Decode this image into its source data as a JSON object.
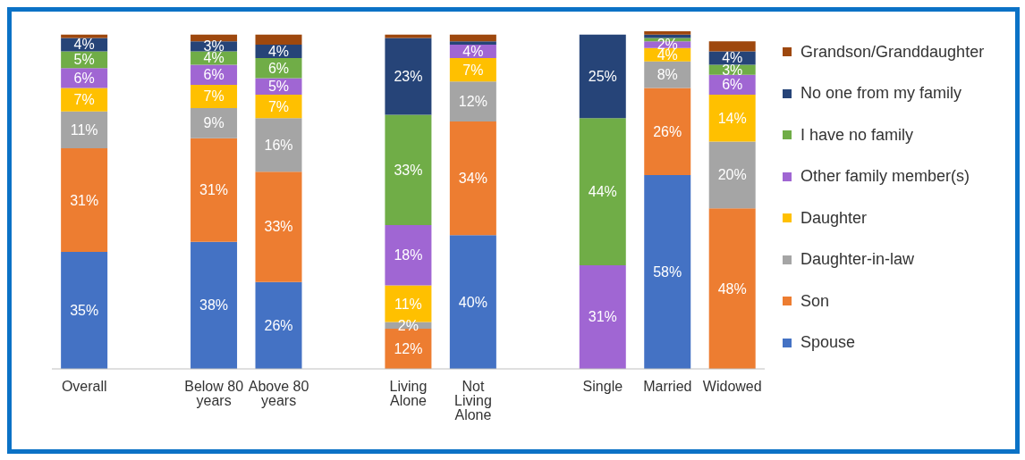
{
  "chart_data": {
    "type": "bar",
    "stacked": true,
    "legend": "right",
    "categories": [
      "Overall",
      null,
      "Below 80 years",
      "Above 80 years",
      null,
      "Living Alone",
      "Not Living Alone",
      null,
      "Single",
      "Married",
      "Widowed"
    ],
    "series": [
      {
        "name": "Spouse",
        "color": "#4472c4",
        "values": [
          35,
          null,
          38,
          26,
          null,
          0,
          40,
          null,
          0,
          58,
          0
        ],
        "value_labels": [
          "35%",
          null,
          "38%",
          "26%",
          null,
          null,
          "40%",
          null,
          null,
          "58%",
          null
        ]
      },
      {
        "name": "Son",
        "color": "#ed7d31",
        "values": [
          31,
          null,
          31,
          33,
          null,
          12,
          34,
          null,
          0,
          26,
          48
        ],
        "value_labels": [
          "31%",
          null,
          "31%",
          "33%",
          null,
          "12%",
          "34%",
          null,
          null,
          "26%",
          "48%"
        ]
      },
      {
        "name": "Daughter-in-law",
        "color": "#a5a5a5",
        "values": [
          11,
          null,
          9,
          16,
          null,
          2,
          12,
          null,
          0,
          8,
          20
        ],
        "value_labels": [
          "11%",
          null,
          "9%",
          "16%",
          null,
          "2%",
          "12%",
          null,
          null,
          "8%",
          "20%"
        ]
      },
      {
        "name": "Daughter",
        "color": "#ffc000",
        "values": [
          7,
          null,
          7,
          7,
          null,
          11,
          7,
          null,
          0,
          4,
          14
        ],
        "value_labels": [
          "7%",
          null,
          "7%",
          "7%",
          null,
          "11%",
          "7%",
          null,
          null,
          "4%",
          "14%"
        ]
      },
      {
        "name": "Other family member(s)",
        "color": "#a066d3",
        "values": [
          6,
          null,
          6,
          5,
          null,
          18,
          4,
          null,
          31,
          2,
          6
        ],
        "value_labels": [
          "6%",
          null,
          "6%",
          "5%",
          null,
          "18%",
          "4%",
          null,
          "31%",
          "2%",
          "6%"
        ]
      },
      {
        "name": "I have no family",
        "color": "#70ad47",
        "values": [
          5,
          null,
          4,
          6,
          null,
          33,
          0,
          null,
          44,
          1,
          3
        ],
        "value_labels": [
          "5%",
          null,
          "4%",
          "6%",
          null,
          "33%",
          null,
          null,
          "44%",
          null,
          "3%"
        ]
      },
      {
        "name": "No one from my family",
        "color": "#264478",
        "values": [
          4,
          null,
          3,
          4,
          null,
          23,
          1,
          null,
          25,
          1,
          4
        ],
        "value_labels": [
          "4%",
          null,
          "3%",
          "4%",
          null,
          "23%",
          null,
          null,
          "25%",
          null,
          "4%"
        ]
      },
      {
        "name": "Grandson/Granddaughter",
        "color": "#9e480e",
        "values": [
          1,
          null,
          2,
          3,
          null,
          1,
          2,
          null,
          0,
          1,
          3
        ],
        "value_labels": [
          null,
          null,
          null,
          null,
          null,
          null,
          null,
          null,
          null,
          null,
          null
        ]
      }
    ]
  }
}
